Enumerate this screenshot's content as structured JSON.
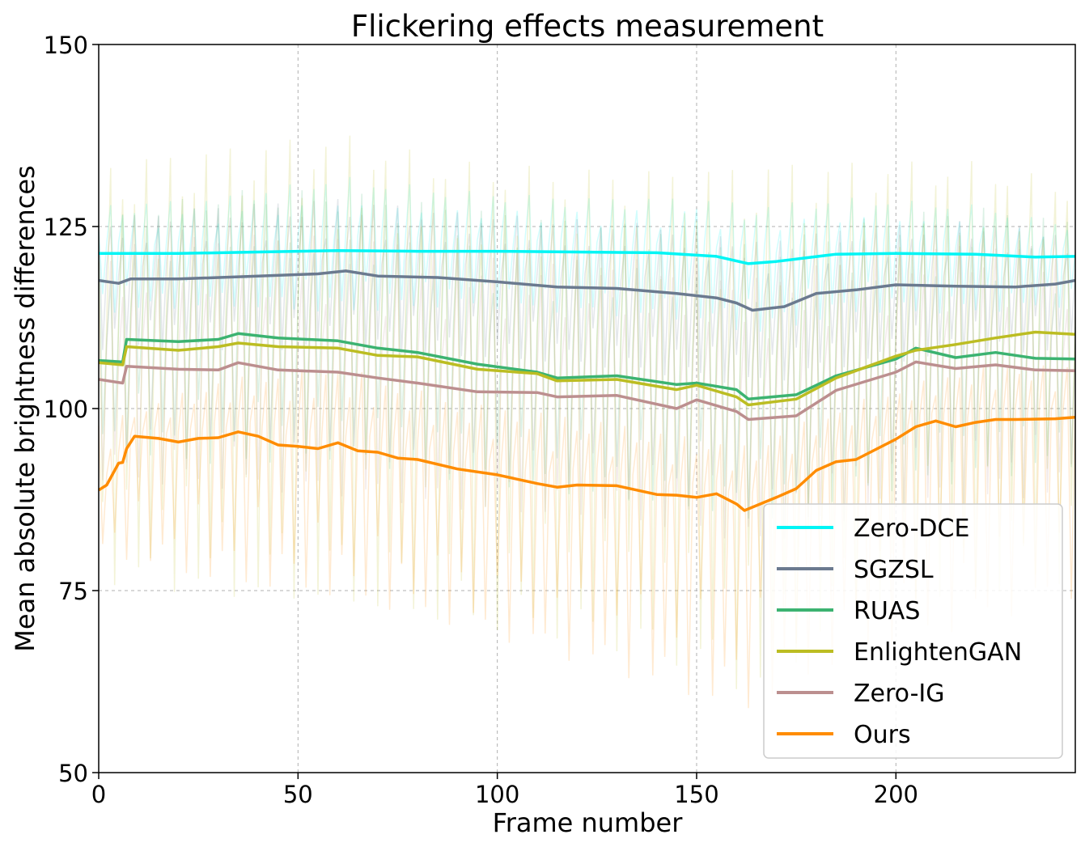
{
  "chart_data": {
    "type": "line",
    "title": "Flickering effects measurement",
    "xlabel": "Frame number",
    "ylabel": "Mean absolute brightness differences",
    "xlim": [
      0,
      245
    ],
    "ylim": [
      50,
      150
    ],
    "xticks": [
      0,
      50,
      100,
      150,
      200
    ],
    "yticks": [
      50,
      75,
      100,
      125,
      150
    ],
    "xtick_labels": [
      "0",
      "50",
      "100",
      "150",
      "200"
    ],
    "ytick_labels": [
      "50",
      "75",
      "100",
      "125",
      "150"
    ],
    "grid": true,
    "legend_position": "lower-right",
    "note": "Each method is drawn as a smoothed line over a faint, rapidly fluctuating raw per-frame signal.",
    "series": [
      {
        "name": "Zero-DCE",
        "color": "#00f5f5",
        "smoothed": [
          [
            0,
            121.3
          ],
          [
            20,
            121.3
          ],
          [
            40,
            121.5
          ],
          [
            60,
            121.7
          ],
          [
            80,
            121.6
          ],
          [
            100,
            121.6
          ],
          [
            120,
            121.5
          ],
          [
            140,
            121.4
          ],
          [
            155,
            120.9
          ],
          [
            163,
            119.9
          ],
          [
            170,
            120.2
          ],
          [
            185,
            121.2
          ],
          [
            200,
            121.3
          ],
          [
            220,
            121.2
          ],
          [
            235,
            120.8
          ],
          [
            245,
            120.9
          ]
        ],
        "raw_envelope": [
          [
            0,
            113,
            128
          ],
          [
            30,
            114,
            129
          ],
          [
            60,
            113,
            132
          ],
          [
            90,
            114,
            130
          ],
          [
            120,
            113,
            129
          ],
          [
            150,
            112,
            129
          ],
          [
            165,
            110,
            128
          ],
          [
            190,
            113,
            129
          ],
          [
            220,
            113,
            128
          ],
          [
            245,
            114,
            125
          ]
        ]
      },
      {
        "name": "SGZSL",
        "color": "#6b7a8f",
        "smoothed": [
          [
            0,
            117.6
          ],
          [
            5,
            117.2
          ],
          [
            8,
            117.8
          ],
          [
            20,
            117.8
          ],
          [
            40,
            118.2
          ],
          [
            55,
            118.5
          ],
          [
            62,
            118.9
          ],
          [
            70,
            118.2
          ],
          [
            85,
            118.0
          ],
          [
            100,
            117.4
          ],
          [
            115,
            116.7
          ],
          [
            130,
            116.5
          ],
          [
            145,
            115.8
          ],
          [
            155,
            115.2
          ],
          [
            160,
            114.5
          ],
          [
            164,
            113.5
          ],
          [
            172,
            114.0
          ],
          [
            180,
            115.8
          ],
          [
            190,
            116.3
          ],
          [
            200,
            117.0
          ],
          [
            215,
            116.8
          ],
          [
            230,
            116.7
          ],
          [
            240,
            117.1
          ],
          [
            245,
            117.6
          ]
        ],
        "raw_envelope": [
          [
            0,
            108,
            126
          ],
          [
            30,
            108,
            128
          ],
          [
            60,
            108,
            129
          ],
          [
            90,
            107,
            127
          ],
          [
            120,
            106,
            126
          ],
          [
            150,
            104,
            125
          ],
          [
            165,
            103,
            123
          ],
          [
            190,
            106,
            125
          ],
          [
            220,
            107,
            126
          ],
          [
            245,
            108,
            124
          ]
        ]
      },
      {
        "name": "RUAS",
        "color": "#3cb371",
        "smoothed": [
          [
            0,
            106.6
          ],
          [
            6,
            106.4
          ],
          [
            7,
            109.5
          ],
          [
            20,
            109.2
          ],
          [
            30,
            109.5
          ],
          [
            35,
            110.3
          ],
          [
            45,
            109.7
          ],
          [
            60,
            109.3
          ],
          [
            70,
            108.3
          ],
          [
            80,
            107.7
          ],
          [
            95,
            106.1
          ],
          [
            110,
            105.0
          ],
          [
            115,
            104.2
          ],
          [
            130,
            104.5
          ],
          [
            145,
            103.3
          ],
          [
            150,
            103.5
          ],
          [
            160,
            102.6
          ],
          [
            163,
            101.3
          ],
          [
            175,
            101.9
          ],
          [
            185,
            104.5
          ],
          [
            200,
            106.8
          ],
          [
            205,
            108.3
          ],
          [
            215,
            107.0
          ],
          [
            225,
            107.7
          ],
          [
            235,
            106.9
          ],
          [
            245,
            106.8
          ]
        ],
        "raw_envelope": [
          [
            0,
            94,
            126
          ],
          [
            30,
            92,
            130
          ],
          [
            60,
            93,
            130
          ],
          [
            90,
            90,
            128
          ],
          [
            120,
            88,
            126
          ],
          [
            150,
            86,
            125
          ],
          [
            165,
            84,
            122
          ],
          [
            190,
            88,
            126
          ],
          [
            220,
            90,
            128
          ],
          [
            245,
            92,
            126
          ]
        ]
      },
      {
        "name": "EnlightenGAN",
        "color": "#bcbd22",
        "smoothed": [
          [
            0,
            106.3
          ],
          [
            6,
            106.0
          ],
          [
            7,
            108.5
          ],
          [
            20,
            108.0
          ],
          [
            30,
            108.5
          ],
          [
            35,
            109.0
          ],
          [
            45,
            108.5
          ],
          [
            60,
            108.3
          ],
          [
            70,
            107.3
          ],
          [
            80,
            107.1
          ],
          [
            95,
            105.4
          ],
          [
            110,
            104.8
          ],
          [
            115,
            103.8
          ],
          [
            130,
            104.0
          ],
          [
            145,
            102.6
          ],
          [
            150,
            103.2
          ],
          [
            160,
            101.6
          ],
          [
            163,
            100.5
          ],
          [
            175,
            101.3
          ],
          [
            185,
            104.2
          ],
          [
            200,
            107.2
          ],
          [
            205,
            108.0
          ],
          [
            215,
            108.8
          ],
          [
            225,
            109.7
          ],
          [
            235,
            110.5
          ],
          [
            245,
            110.2
          ]
        ],
        "raw_envelope": [
          [
            0,
            76,
            134
          ],
          [
            30,
            74,
            136
          ],
          [
            60,
            73,
            138
          ],
          [
            90,
            70,
            134
          ],
          [
            120,
            68,
            133
          ],
          [
            150,
            64,
            133
          ],
          [
            165,
            60,
            134
          ],
          [
            190,
            72,
            134
          ],
          [
            220,
            74,
            134
          ],
          [
            245,
            76,
            131
          ]
        ]
      },
      {
        "name": "Zero-IG",
        "color": "#bc8f8f",
        "smoothed": [
          [
            0,
            104.0
          ],
          [
            6,
            103.5
          ],
          [
            7,
            105.8
          ],
          [
            20,
            105.4
          ],
          [
            30,
            105.3
          ],
          [
            35,
            106.3
          ],
          [
            45,
            105.3
          ],
          [
            60,
            105.0
          ],
          [
            70,
            104.2
          ],
          [
            80,
            103.5
          ],
          [
            95,
            102.3
          ],
          [
            110,
            102.2
          ],
          [
            115,
            101.6
          ],
          [
            130,
            101.8
          ],
          [
            145,
            100.0
          ],
          [
            150,
            101.2
          ],
          [
            160,
            99.6
          ],
          [
            163,
            98.5
          ],
          [
            175,
            99.0
          ],
          [
            185,
            102.5
          ],
          [
            200,
            105.0
          ],
          [
            205,
            106.4
          ],
          [
            215,
            105.5
          ],
          [
            225,
            106.0
          ],
          [
            235,
            105.3
          ],
          [
            245,
            105.2
          ]
        ],
        "raw_envelope": [
          [
            0,
            90,
            122
          ],
          [
            30,
            89,
            124
          ],
          [
            60,
            88,
            124
          ],
          [
            90,
            86,
            122
          ],
          [
            120,
            85,
            121
          ],
          [
            150,
            83,
            120
          ],
          [
            165,
            81,
            118
          ],
          [
            190,
            85,
            121
          ],
          [
            220,
            87,
            123
          ],
          [
            245,
            88,
            121
          ]
        ]
      },
      {
        "name": "Ours",
        "color": "#ff8c00",
        "smoothed": [
          [
            0,
            88.8
          ],
          [
            2,
            89.5
          ],
          [
            5,
            92.5
          ],
          [
            6,
            92.6
          ],
          [
            7,
            94.5
          ],
          [
            9,
            96.2
          ],
          [
            15,
            95.9
          ],
          [
            20,
            95.4
          ],
          [
            25,
            95.9
          ],
          [
            30,
            96.0
          ],
          [
            35,
            96.8
          ],
          [
            40,
            96.2
          ],
          [
            45,
            95.0
          ],
          [
            50,
            94.8
          ],
          [
            55,
            94.5
          ],
          [
            60,
            95.3
          ],
          [
            65,
            94.2
          ],
          [
            70,
            94.0
          ],
          [
            75,
            93.2
          ],
          [
            80,
            93.0
          ],
          [
            90,
            91.7
          ],
          [
            100,
            90.9
          ],
          [
            110,
            89.7
          ],
          [
            115,
            89.2
          ],
          [
            120,
            89.5
          ],
          [
            130,
            89.4
          ],
          [
            140,
            88.2
          ],
          [
            145,
            88.1
          ],
          [
            150,
            87.8
          ],
          [
            155,
            88.3
          ],
          [
            160,
            86.9
          ],
          [
            162,
            86.0
          ],
          [
            170,
            87.8
          ],
          [
            175,
            89.0
          ],
          [
            180,
            91.5
          ],
          [
            185,
            92.7
          ],
          [
            190,
            93.0
          ],
          [
            200,
            95.8
          ],
          [
            205,
            97.5
          ],
          [
            210,
            98.3
          ],
          [
            215,
            97.5
          ],
          [
            220,
            98.1
          ],
          [
            225,
            98.5
          ],
          [
            230,
            98.5
          ],
          [
            240,
            98.6
          ],
          [
            245,
            98.8
          ]
        ],
        "raw_envelope": [
          [
            0,
            80,
            98
          ],
          [
            30,
            76,
            104
          ],
          [
            60,
            74,
            106
          ],
          [
            90,
            70,
            101
          ],
          [
            120,
            65,
            99
          ],
          [
            150,
            60,
            96
          ],
          [
            162,
            58,
            95
          ],
          [
            190,
            66,
            101
          ],
          [
            220,
            70,
            106
          ],
          [
            245,
            74,
            106
          ]
        ]
      }
    ]
  }
}
